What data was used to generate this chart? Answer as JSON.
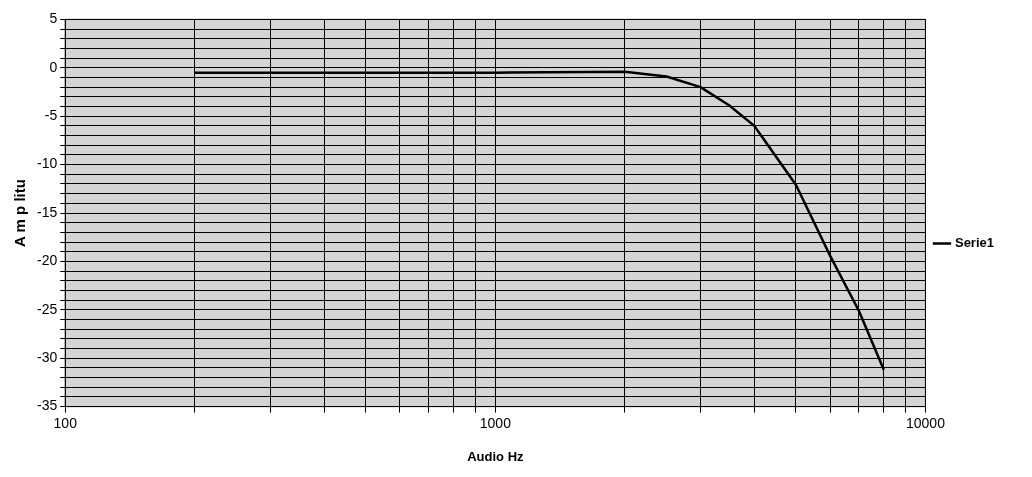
{
  "chart_data": {
    "type": "line",
    "xlabel": "Audio Hz",
    "ylabel": "A m p litu",
    "x": [
      200,
      500,
      1000,
      2000,
      2500,
      3000,
      3500,
      4000,
      5000,
      6000,
      7000,
      8000
    ],
    "series": [
      {
        "name": "Serie1",
        "color": "#000000",
        "values": [
          -0.5,
          -0.5,
          -0.5,
          -0.4,
          -0.9,
          -2,
          -3.9,
          -6,
          -12.1,
          -19.4,
          -25.1,
          -31.2
        ]
      }
    ],
    "log": "x",
    "xlim": [
      100,
      10000
    ],
    "xticks": [
      100,
      {
        "value": 200,
        "label": null
      },
      {
        "value": 300,
        "label": null
      },
      {
        "value": 400,
        "label": null
      },
      {
        "value": 500,
        "label": null
      },
      {
        "value": 600,
        "label": null
      },
      {
        "value": 700,
        "label": null
      },
      {
        "value": 800,
        "label": null
      },
      {
        "value": 900,
        "label": null
      },
      1000,
      {
        "value": 2000,
        "label": null
      },
      {
        "value": 3000,
        "label": null
      },
      {
        "value": 4000,
        "label": null
      },
      {
        "value": 5000,
        "label": null
      },
      {
        "value": 6000,
        "label": null
      },
      {
        "value": 7000,
        "label": null
      },
      {
        "value": 8000,
        "label": null
      },
      {
        "value": 9000,
        "label": null
      },
      10000
    ],
    "ylim": [
      -35,
      5
    ],
    "yticks": [
      -35,
      {
        "value": -34,
        "label": null
      },
      {
        "value": -33,
        "label": null
      },
      {
        "value": -32,
        "label": null
      },
      {
        "value": -31,
        "label": null
      },
      -30,
      {
        "value": -29,
        "label": null
      },
      {
        "value": -28,
        "label": null
      },
      {
        "value": -27,
        "label": null
      },
      {
        "value": -26,
        "label": null
      },
      -25,
      {
        "value": -24,
        "label": null
      },
      {
        "value": -23,
        "label": null
      },
      {
        "value": -22,
        "label": null
      },
      {
        "value": -21,
        "label": null
      },
      -20,
      {
        "value": -19,
        "label": null
      },
      {
        "value": -18,
        "label": null
      },
      {
        "value": -17,
        "label": null
      },
      {
        "value": -16,
        "label": null
      },
      -15,
      {
        "value": -14,
        "label": null
      },
      {
        "value": -13,
        "label": null
      },
      {
        "value": -12,
        "label": null
      },
      {
        "value": -11,
        "label": null
      },
      -10,
      {
        "value": -9,
        "label": null
      },
      {
        "value": -8,
        "label": null
      },
      {
        "value": -7,
        "label": null
      },
      {
        "value": -6,
        "label": null
      },
      -5,
      {
        "value": -4,
        "label": null
      },
      {
        "value": -3,
        "label": null
      },
      {
        "value": -2,
        "label": null
      },
      {
        "value": -1,
        "label": null
      },
      0,
      {
        "value": 1,
        "label": null
      },
      {
        "value": 2,
        "label": null
      },
      {
        "value": 3,
        "label": null
      },
      {
        "value": 4,
        "label": null
      },
      5
    ],
    "grid": true,
    "legend": "right",
    "marker": "none",
    "line_style": "solid"
  }
}
